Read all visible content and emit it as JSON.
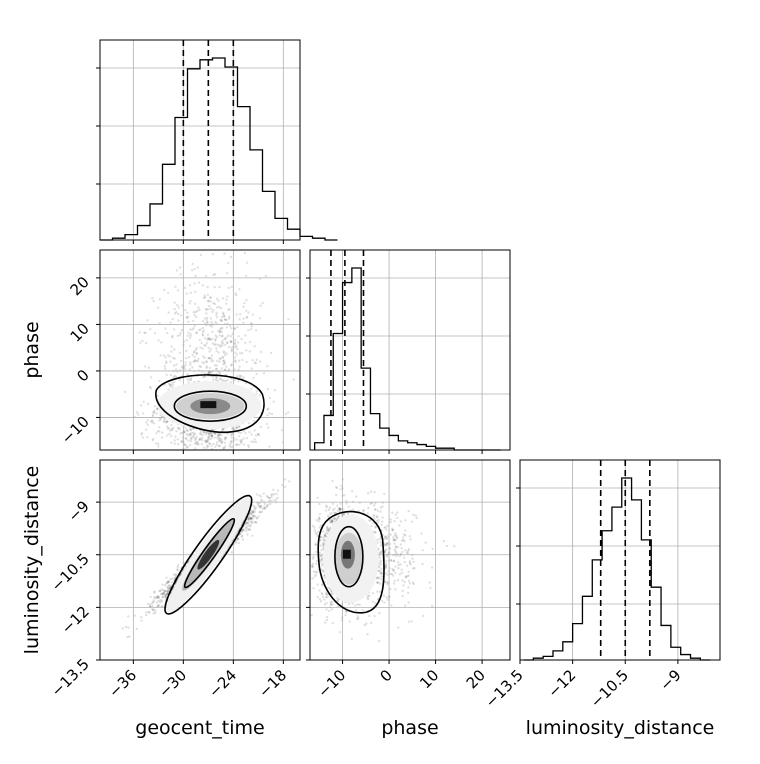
{
  "chart_data": {
    "type": "scatter",
    "parameters": [
      {
        "name": "geocent_time",
        "ticks": [
          -36,
          -30,
          -24,
          -18
        ],
        "range": [
          -40,
          -16
        ],
        "median": -27.0,
        "q16": -30.0,
        "q84": -24.0
      },
      {
        "name": "phase",
        "ticks": [
          -10,
          0,
          10,
          20
        ],
        "range": [
          -17,
          26
        ],
        "median": -9.5,
        "q16": -12.5,
        "q84": -5.5
      },
      {
        "name": "luminosity_distance",
        "ticks": [
          -13.5,
          -12.0,
          -10.5,
          -9.0
        ],
        "range": [
          -13.5,
          -7.8
        ],
        "median": -10.5,
        "q16": -11.2,
        "q84": -9.8
      }
    ],
    "marginals": [
      {
        "parameter": "geocent_time",
        "bins_start": -40,
        "bin_width": 1.5,
        "counts": [
          0,
          1,
          3,
          8,
          20,
          42,
          68,
          95,
          100,
          101,
          96,
          74,
          50,
          27,
          12,
          6,
          2,
          1,
          0
        ]
      },
      {
        "parameter": "phase",
        "bins_start": -16,
        "bin_width": 2.0,
        "counts": [
          4,
          19,
          64,
          92,
          100,
          45,
          20,
          12,
          8,
          5,
          4,
          3,
          2,
          1,
          1,
          0,
          0,
          0,
          0,
          0
        ]
      },
      {
        "parameter": "luminosity_distance",
        "bins_start": -13.4,
        "bin_width": 0.28,
        "counts": [
          0,
          1,
          2,
          5,
          10,
          20,
          35,
          55,
          71,
          84,
          100,
          88,
          66,
          40,
          19,
          7,
          3,
          1,
          0
        ]
      }
    ],
    "pairs": [
      {
        "x": "geocent_time",
        "y": "phase",
        "mean": [
          -27,
          -8
        ],
        "std": [
          3.2,
          6.5
        ],
        "corr": 0.0,
        "skew_y": "right"
      },
      {
        "x": "geocent_time",
        "y": "luminosity_distance",
        "mean": [
          -27,
          -10.5
        ],
        "std": [
          3.2,
          0.7
        ],
        "corr": 0.97
      },
      {
        "x": "phase",
        "y": "luminosity_distance",
        "mean": [
          -9.5,
          -10.5
        ],
        "std": [
          3.0,
          0.7
        ],
        "corr": 0.0,
        "skew_x": "right"
      }
    ],
    "grid": true,
    "xlabel": [
      "geocent_time",
      "phase",
      "luminosity_distance"
    ],
    "ylabel": [
      "phase",
      "luminosity_distance"
    ]
  }
}
